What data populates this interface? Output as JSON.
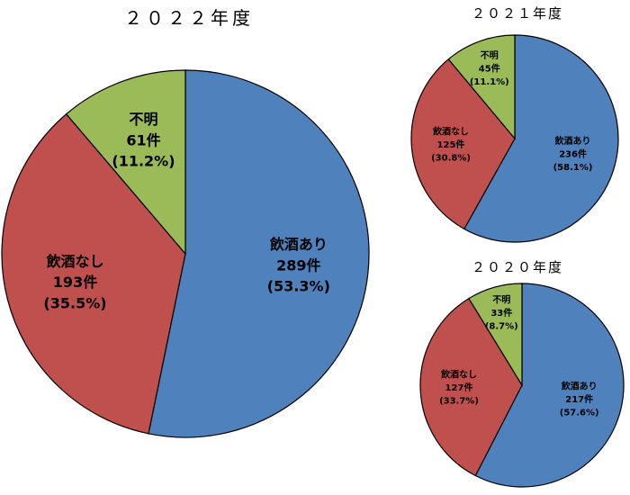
{
  "chart_data": [
    {
      "type": "pie",
      "title": "２０２２年度",
      "unit": "件",
      "slices": [
        {
          "name": "飲酒あり",
          "count_label": "289件",
          "value": 289,
          "percent_label": "(53.3%)",
          "percent": 53.3,
          "color": "#4F81BD"
        },
        {
          "name": "飲酒なし",
          "count_label": "193件",
          "value": 193,
          "percent_label": "(35.5%)",
          "percent": 35.5,
          "color": "#C0504D"
        },
        {
          "name": "不明",
          "count_label": "61件",
          "value": 61,
          "percent_label": "(11.2%)",
          "percent": 11.2,
          "color": "#9BBB59"
        }
      ]
    },
    {
      "type": "pie",
      "title": "２０２１年度",
      "unit": "件",
      "slices": [
        {
          "name": "飲酒あり",
          "count_label": "236件",
          "value": 236,
          "percent_label": "(58.1%)",
          "percent": 58.1,
          "color": "#4F81BD"
        },
        {
          "name": "飲酒なし",
          "count_label": "125件",
          "value": 125,
          "percent_label": "(30.8%)",
          "percent": 30.8,
          "color": "#C0504D"
        },
        {
          "name": "不明",
          "count_label": "45件",
          "value": 45,
          "percent_label": "(11.1%)",
          "percent": 11.1,
          "color": "#9BBB59"
        }
      ]
    },
    {
      "type": "pie",
      "title": "２０２０年度",
      "unit": "件",
      "slices": [
        {
          "name": "飲酒あり",
          "count_label": "217件",
          "value": 217,
          "percent_label": "(57.6%)",
          "percent": 57.6,
          "color": "#4F81BD"
        },
        {
          "name": "飲酒なし",
          "count_label": "127件",
          "value": 127,
          "percent_label": "(33.7%)",
          "percent": 33.7,
          "color": "#C0504D"
        },
        {
          "name": "不明",
          "count_label": "33件",
          "value": 33,
          "percent_label": "(8.7%)",
          "percent": 8.7,
          "color": "#9BBB59"
        }
      ]
    }
  ]
}
